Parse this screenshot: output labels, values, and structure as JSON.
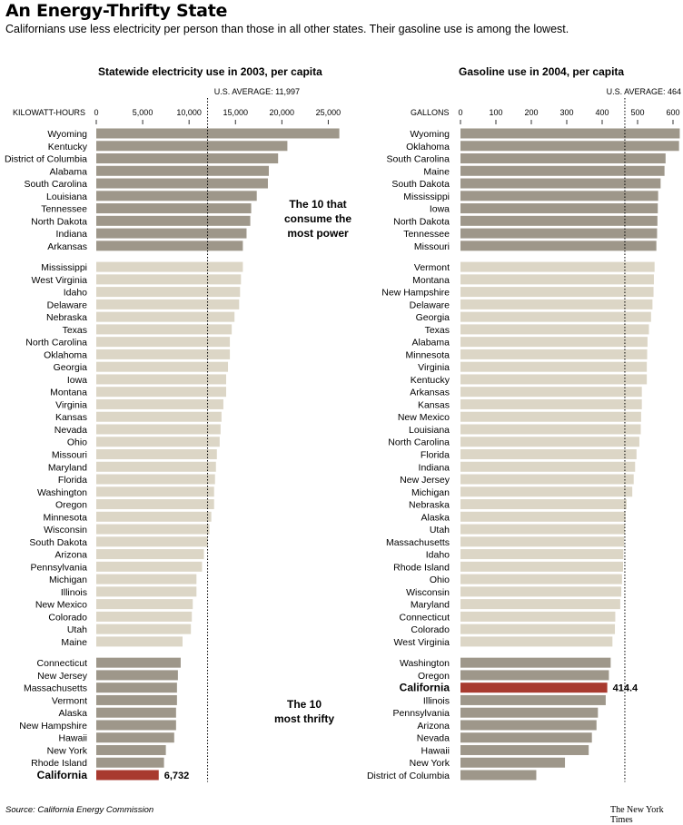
{
  "title": "An Energy-Thrifty State",
  "subtitle": "Californians use less electricity per person than those in all other states. Their gasoline use is among the lowest.",
  "source": "Source: California Energy Commission",
  "credit": "The New York Times",
  "colors": {
    "dark_bar": "#9e978a",
    "light_bar": "#dcd6c6",
    "highlight": "#a83a2f"
  },
  "chart_data": [
    {
      "type": "bar",
      "orientation": "horizontal",
      "title": "Statewide electricity use in 2003, per capita",
      "unit_label": "KILOWATT-HOURS",
      "xlim": [
        0,
        27000
      ],
      "xticks": [
        0,
        5000,
        10000,
        15000,
        20000,
        25000
      ],
      "xtick_labels": [
        "0",
        "5,000",
        "10,000",
        "15,000",
        "20,000",
        "25,000"
      ],
      "average": {
        "label": "U.S. AVERAGE: 11,997",
        "value": 11997
      },
      "highlight": {
        "category": "California",
        "label": "6,732"
      },
      "annotations": [
        "The 10 that\nconsume the\nmost power",
        "The 10\nmost thrifty"
      ],
      "groups": [
        {
          "style": "dark",
          "categories": [
            "Wyoming",
            "Kentucky",
            "District of Columbia",
            "Alabama",
            "South Carolina",
            "Louisiana",
            "Tennessee",
            "North Dakota",
            "Indiana",
            "Arkansas"
          ],
          "values": [
            26200,
            20600,
            19600,
            18600,
            18500,
            17300,
            16700,
            16600,
            16200,
            15800
          ]
        },
        {
          "style": "light",
          "categories": [
            "Mississippi",
            "West Virginia",
            "Idaho",
            "Delaware",
            "Nebraska",
            "Texas",
            "North Carolina",
            "Oklahoma",
            "Georgia",
            "Iowa",
            "Montana",
            "Virginia",
            "Kansas",
            "Nevada",
            "Ohio",
            "Missouri",
            "Maryland",
            "Florida",
            "Washington",
            "Oregon",
            "Minnesota",
            "Wisconsin",
            "South Dakota",
            "Arizona",
            "Pennsylvania",
            "Michigan",
            "Illinois",
            "New Mexico",
            "Colorado",
            "Utah",
            "Maine"
          ],
          "values": [
            15800,
            15600,
            15500,
            15400,
            14900,
            14600,
            14400,
            14400,
            14200,
            14000,
            14000,
            13700,
            13500,
            13400,
            13300,
            13000,
            12900,
            12800,
            12700,
            12700,
            12400,
            12200,
            12000,
            11600,
            11400,
            10800,
            10800,
            10400,
            10300,
            10200,
            9300
          ]
        },
        {
          "style": "dark",
          "categories": [
            "Connecticut",
            "New Jersey",
            "Massachusetts",
            "Vermont",
            "Alaska",
            "New Hampshire",
            "Hawaii",
            "New York",
            "Rhode Island",
            "California"
          ],
          "values": [
            9100,
            8800,
            8700,
            8700,
            8600,
            8600,
            8400,
            7500,
            7300,
            6732
          ]
        }
      ]
    },
    {
      "type": "bar",
      "orientation": "horizontal",
      "title": "Gasoline use in 2004, per capita",
      "unit_label": "GALLONS",
      "xlim": [
        0,
        620
      ],
      "xticks": [
        0,
        100,
        200,
        300,
        400,
        500,
        600
      ],
      "xtick_labels": [
        "0",
        "100",
        "200",
        "300",
        "400",
        "500",
        "600"
      ],
      "average": {
        "label": "U.S. AVERAGE: 464",
        "value": 464
      },
      "highlight": {
        "category": "California",
        "label": "414.4"
      },
      "groups": [
        {
          "style": "dark",
          "categories": [
            "Wyoming",
            "Oklahoma",
            "South Carolina",
            "Maine",
            "South Dakota",
            "Mississippi",
            "Iowa",
            "North Dakota",
            "Tennessee",
            "Missouri"
          ],
          "values": [
            619,
            617,
            579,
            576,
            565,
            558,
            557,
            556,
            555,
            553
          ]
        },
        {
          "style": "light",
          "categories": [
            "Vermont",
            "Montana",
            "New Hampshire",
            "Delaware",
            "Georgia",
            "Texas",
            "Alabama",
            "Minnesota",
            "Virginia",
            "Kentucky",
            "Arkansas",
            "Kansas",
            "New Mexico",
            "Louisiana",
            "North Carolina",
            "Florida",
            "Indiana",
            "New Jersey",
            "Michigan",
            "Nebraska",
            "Alaska",
            "Utah",
            "Massachusetts",
            "Idaho",
            "Rhode Island",
            "Ohio",
            "Wisconsin",
            "Maryland",
            "Connecticut",
            "Colorado",
            "West Virginia"
          ],
          "values": [
            548,
            546,
            545,
            542,
            538,
            532,
            528,
            527,
            526,
            526,
            512,
            512,
            510,
            509,
            505,
            497,
            493,
            489,
            485,
            469,
            466,
            464,
            462,
            460,
            459,
            456,
            454,
            451,
            437,
            436,
            429
          ]
        },
        {
          "style": "dark",
          "categories": [
            "Washington",
            "Oregon",
            "California",
            "Illinois",
            "Pennsylvania",
            "Arizona",
            "Nevada",
            "Hawaii",
            "New York",
            "District of Columbia"
          ],
          "values": [
            424,
            419,
            414.4,
            410,
            388,
            384,
            371,
            362,
            295,
            214
          ]
        }
      ]
    }
  ]
}
